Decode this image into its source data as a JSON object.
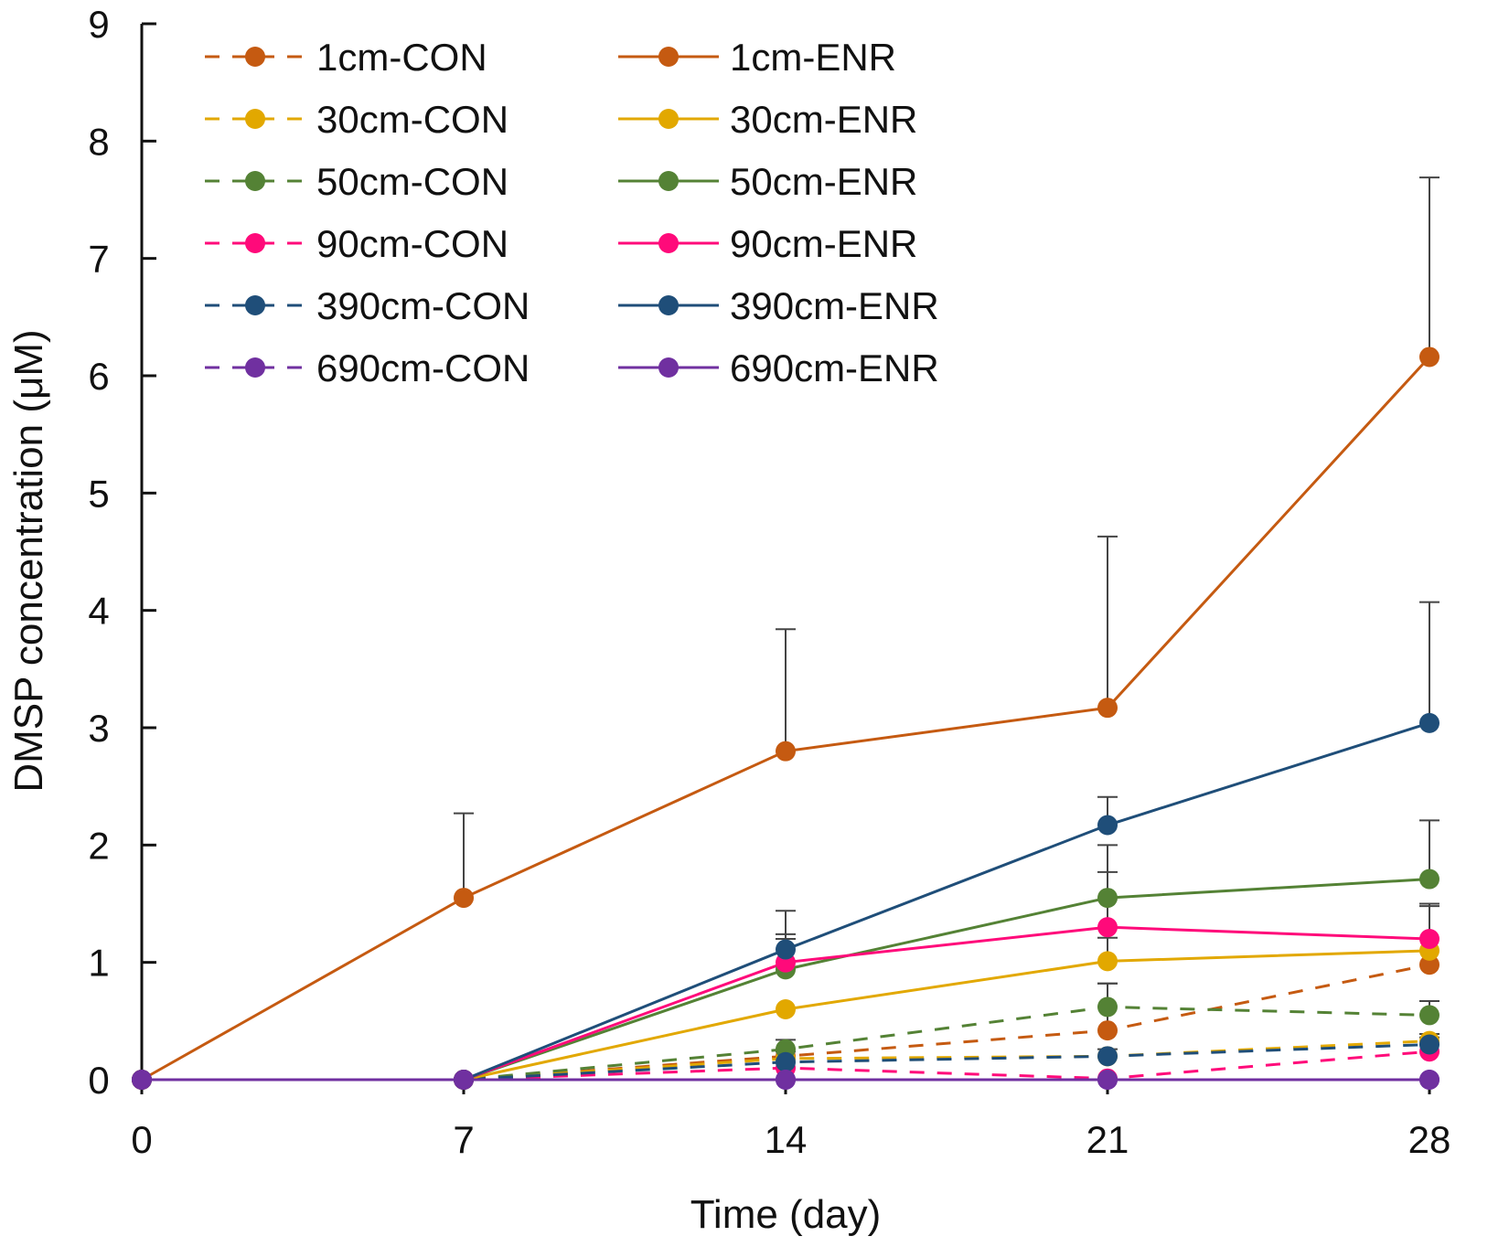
{
  "chart_data": {
    "type": "line",
    "title": "",
    "xlabel": "Time (day)",
    "ylabel": "DMSP concentration (μM)",
    "x": [
      0,
      7,
      14,
      21,
      28
    ],
    "xlim": [
      0,
      28
    ],
    "ylim": [
      0,
      9
    ],
    "yticks": [
      0,
      1,
      2,
      3,
      4,
      5,
      6,
      7,
      8,
      9
    ],
    "legend_position": "top-left",
    "series": [
      {
        "name": "1cm-CON",
        "style": "dashed",
        "color": "#c55a11",
        "values": [
          0,
          0,
          0.2,
          0.42,
          0.98
        ],
        "errors": [
          0,
          0,
          0.06,
          0.4,
          0
        ]
      },
      {
        "name": "30cm-CON",
        "style": "dashed",
        "color": "#e2a800",
        "values": [
          0,
          0,
          0.18,
          0.2,
          0.33
        ],
        "errors": [
          0,
          0,
          0.06,
          0.06,
          0.06
        ]
      },
      {
        "name": "50cm-CON",
        "style": "dashed",
        "color": "#548235",
        "values": [
          0,
          0,
          0.26,
          0.62,
          0.55
        ],
        "errors": [
          0,
          0,
          0.08,
          0.2,
          0.12
        ]
      },
      {
        "name": "90cm-CON",
        "style": "dashed",
        "color": "#ff0a7a",
        "values": [
          0,
          0,
          0.1,
          0.01,
          0.24
        ],
        "errors": [
          0,
          0,
          0,
          0,
          0
        ]
      },
      {
        "name": "390cm-CON",
        "style": "dashed",
        "color": "#1f4e79",
        "values": [
          0,
          0,
          0.15,
          0.2,
          0.3
        ],
        "errors": [
          0,
          0,
          0.05,
          0,
          0.06
        ]
      },
      {
        "name": "690cm-CON",
        "style": "dashed",
        "color": "#7030a0",
        "values": [
          0,
          0,
          0,
          0,
          0
        ],
        "errors": [
          0,
          0,
          0,
          0,
          0
        ]
      },
      {
        "name": "1cm-ENR",
        "style": "solid",
        "color": "#c55a11",
        "values": [
          0,
          1.55,
          2.8,
          3.17,
          6.16
        ],
        "errors": [
          0,
          0.72,
          1.04,
          1.46,
          1.53
        ]
      },
      {
        "name": "30cm-ENR",
        "style": "solid",
        "color": "#e2a800",
        "values": [
          0,
          0,
          0.6,
          1.01,
          1.1
        ],
        "errors": [
          0,
          0,
          0,
          0.2,
          0.38
        ]
      },
      {
        "name": "50cm-ENR",
        "style": "solid",
        "color": "#548235",
        "values": [
          0,
          0,
          0.94,
          1.55,
          1.71
        ],
        "errors": [
          0,
          0,
          0.3,
          0.45,
          0.5
        ]
      },
      {
        "name": "90cm-ENR",
        "style": "solid",
        "color": "#ff0a7a",
        "values": [
          0,
          0,
          1.0,
          1.3,
          1.2
        ],
        "errors": [
          0,
          0,
          0.2,
          0.47,
          0.3
        ]
      },
      {
        "name": "390cm-ENR",
        "style": "solid",
        "color": "#1f4e79",
        "values": [
          0,
          0,
          1.11,
          2.17,
          3.04
        ],
        "errors": [
          0,
          0,
          0.33,
          0.24,
          1.03
        ]
      },
      {
        "name": "690cm-ENR",
        "style": "solid",
        "color": "#7030a0",
        "values": [
          0,
          0,
          0,
          0,
          0
        ],
        "errors": [
          0,
          0,
          0,
          0,
          0
        ]
      }
    ]
  }
}
